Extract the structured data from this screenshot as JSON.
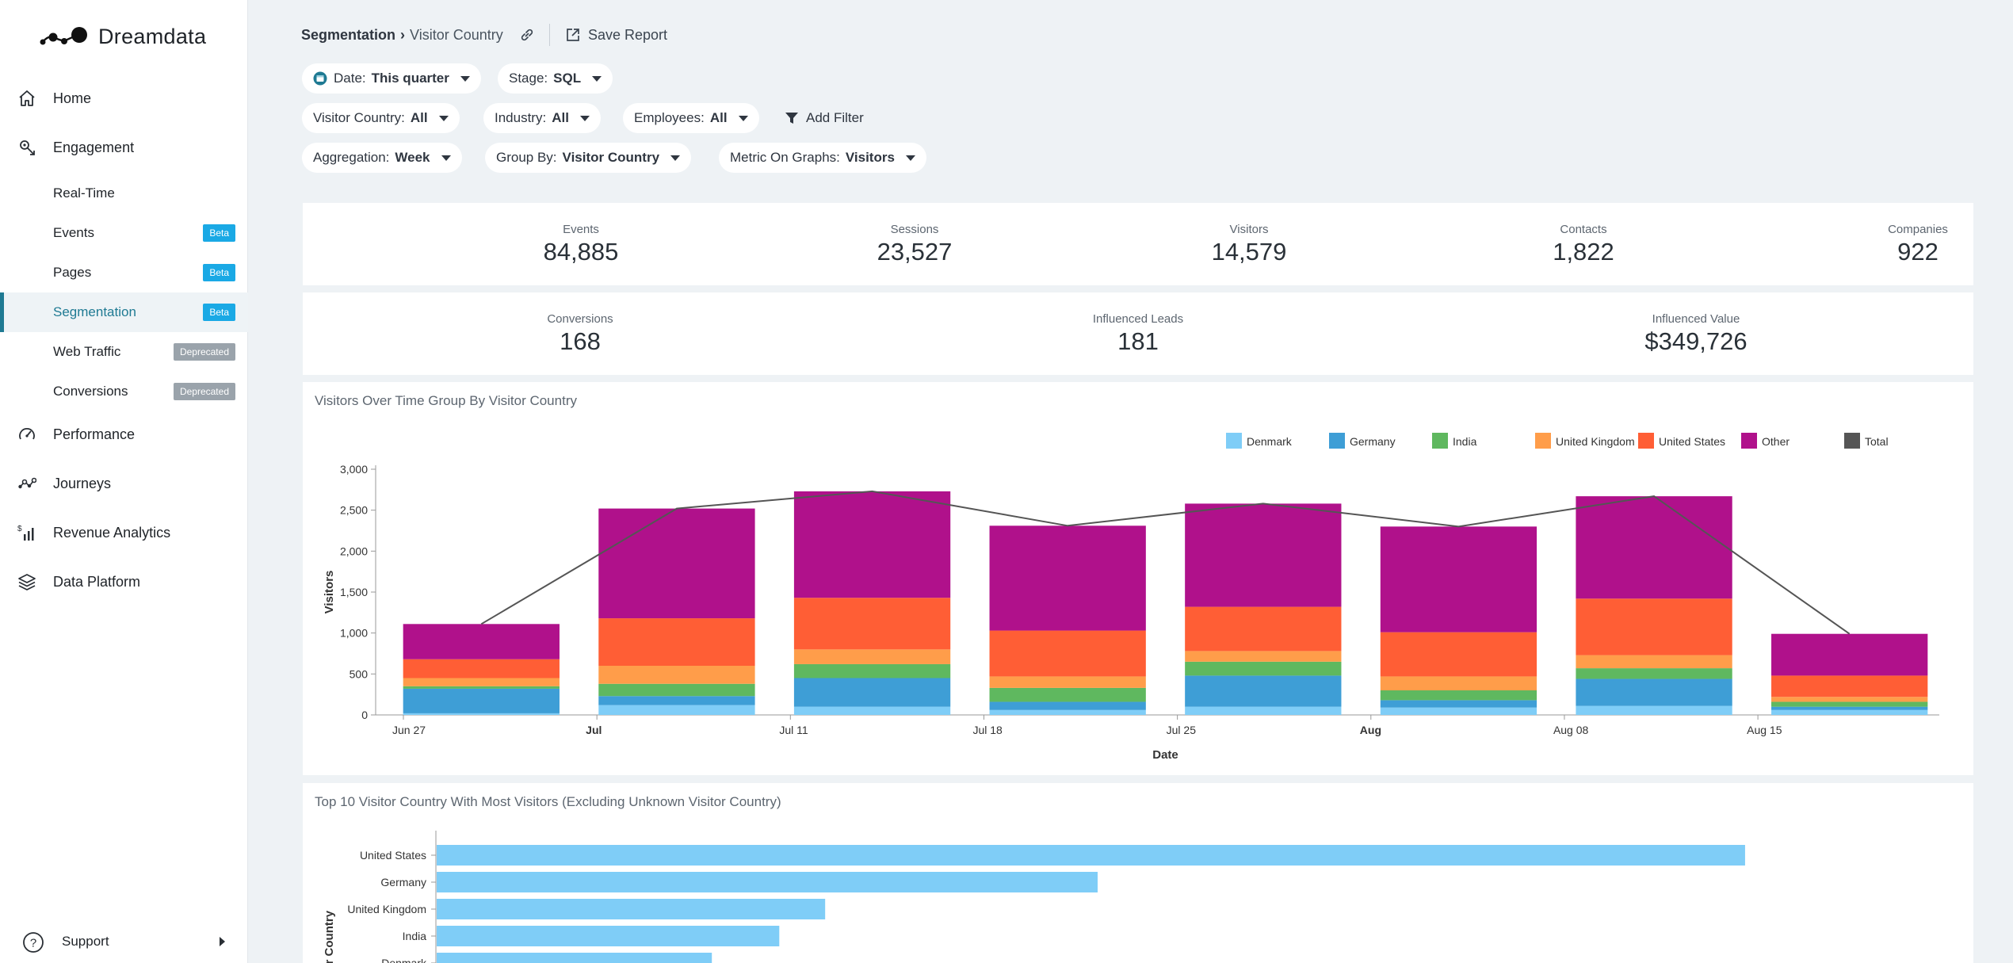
{
  "app": {
    "brand": "Dreamdata"
  },
  "sidebar": {
    "nav": [
      {
        "key": "home",
        "label": "Home"
      },
      {
        "key": "engagement",
        "label": "Engagement"
      }
    ],
    "sub": [
      {
        "label": "Real-Time",
        "badge": ""
      },
      {
        "label": "Events",
        "badge": "Beta"
      },
      {
        "label": "Pages",
        "badge": "Beta"
      },
      {
        "label": "Segmentation",
        "badge": "Beta"
      },
      {
        "label": "Web Traffic",
        "badge": "Deprecated"
      },
      {
        "label": "Conversions",
        "badge": "Deprecated"
      }
    ],
    "nav_bottom": [
      {
        "key": "performance",
        "label": "Performance"
      },
      {
        "key": "journeys",
        "label": "Journeys"
      },
      {
        "key": "revenue",
        "label": "Revenue Analytics"
      },
      {
        "key": "platform",
        "label": "Data Platform"
      }
    ],
    "support": "Support",
    "accent": "#1f7a93"
  },
  "header": {
    "crumb_root": "Segmentation",
    "crumb_sep": "›",
    "crumb_current": "Visitor Country",
    "save_report": "Save Report"
  },
  "filters": {
    "date": {
      "label": "Date:",
      "value": "This quarter"
    },
    "stage": {
      "label": "Stage:",
      "value": "SQL"
    },
    "visitor_country": {
      "label": "Visitor Country:",
      "value": "All"
    },
    "industry": {
      "label": "Industry:",
      "value": "All"
    },
    "employees": {
      "label": "Employees:",
      "value": "All"
    },
    "add_filter": "Add Filter",
    "aggregation": {
      "label": "Aggregation:",
      "value": "Week"
    },
    "group_by": {
      "label": "Group By:",
      "value": "Visitor Country"
    },
    "metric": {
      "label": "Metric On Graphs:",
      "value": "Visitors"
    }
  },
  "metrics_row1": [
    {
      "label": "Events",
      "value": "84,885"
    },
    {
      "label": "Sessions",
      "value": "23,527"
    },
    {
      "label": "Visitors",
      "value": "14,579"
    },
    {
      "label": "Contacts",
      "value": "1,822"
    },
    {
      "label": "Companies",
      "value": "922"
    }
  ],
  "metrics_row2": [
    {
      "label": "Conversions",
      "value": "168"
    },
    {
      "label": "Influenced Leads",
      "value": "181"
    },
    {
      "label": "Influenced Value",
      "value": "$349,726"
    }
  ],
  "chart_data": [
    {
      "type": "bar",
      "stacked": true,
      "title": "Visitors Over Time Group By Visitor Country",
      "xlabel": "Date",
      "ylabel": "Visitors",
      "ylim": [
        0,
        3000
      ],
      "yticks": [
        "0",
        "500",
        "1,000",
        "1,500",
        "2,000",
        "2,500",
        "3,000"
      ],
      "xticks": [
        "Jun 27",
        "Jul",
        "Jul 11",
        "Jul 18",
        "Jul 25",
        "Aug",
        "Aug 08",
        "Aug 15"
      ],
      "bold_xticks": [
        "Jul",
        "Aug"
      ],
      "legend_position": "top-right",
      "series": [
        {
          "name": "Denmark",
          "color": "#7fcdf7",
          "values": [
            20,
            120,
            100,
            60,
            100,
            90,
            110,
            60
          ]
        },
        {
          "name": "Germany",
          "color": "#3e9ed6",
          "values": [
            300,
            110,
            350,
            100,
            380,
            90,
            330,
            40
          ]
        },
        {
          "name": "India",
          "color": "#5fb85f",
          "values": [
            30,
            150,
            170,
            170,
            170,
            120,
            130,
            60
          ]
        },
        {
          "name": "United Kingdom",
          "color": "#ff9d4a",
          "values": [
            100,
            220,
            180,
            140,
            130,
            170,
            160,
            60
          ]
        },
        {
          "name": "United States",
          "color": "#ff5e35",
          "values": [
            230,
            580,
            630,
            560,
            540,
            540,
            690,
            260
          ]
        },
        {
          "name": "Other",
          "color": "#b0118b",
          "values": [
            430,
            1340,
            1300,
            1280,
            1260,
            1290,
            1250,
            510
          ]
        }
      ],
      "total": {
        "name": "Total",
        "color": "#555555",
        "values": [
          1110,
          2520,
          2730,
          2310,
          2580,
          2300,
          2670,
          990
        ]
      }
    },
    {
      "type": "bar",
      "orientation": "horizontal",
      "title": "Top 10 Visitor Country With Most Visitors (Excluding Unknown Visitor Country)",
      "ylabel": "Visitor Country",
      "color": "#7fcdf7",
      "categories": [
        "United States",
        "Germany",
        "United Kingdom",
        "India",
        "Denmark"
      ],
      "values": [
        4850,
        2450,
        1440,
        1270,
        1020
      ],
      "xmax": 5000
    }
  ]
}
